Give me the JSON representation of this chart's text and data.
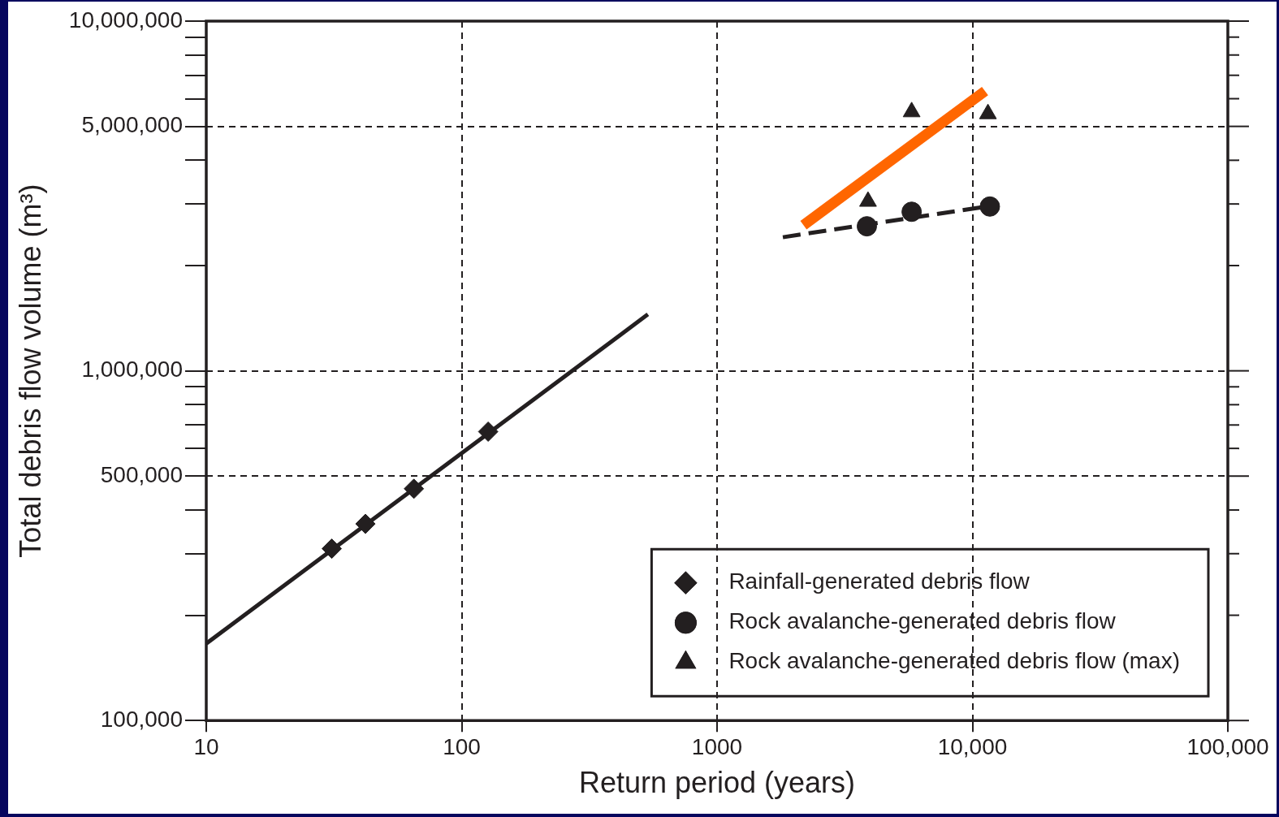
{
  "chart_data": {
    "type": "scatter",
    "xlabel": "Return period (years)",
    "ylabel": "Total debris flow volume (m³)",
    "log": "xy",
    "xlim": [
      10,
      100000
    ],
    "ylim": [
      100000,
      10000000
    ],
    "xticks": [
      10,
      100,
      1000,
      {
        "value": 10000,
        "label": "10,000"
      },
      {
        "value": 100000,
        "label": "100,000"
      }
    ],
    "yticks": [
      {
        "value": 100000,
        "label": "100,000"
      },
      {
        "value": 200000,
        "label": null
      },
      {
        "value": 300000,
        "label": null
      },
      {
        "value": 400000,
        "label": null
      },
      {
        "value": 500000,
        "label": "500,000"
      },
      {
        "value": 600000,
        "label": null
      },
      {
        "value": 700000,
        "label": null
      },
      {
        "value": 800000,
        "label": null
      },
      {
        "value": 900000,
        "label": null
      },
      {
        "value": 1000000,
        "label": "1,000,000"
      },
      {
        "value": 2000000,
        "label": null
      },
      {
        "value": 3000000,
        "label": null
      },
      {
        "value": 4000000,
        "label": null
      },
      {
        "value": 5000000,
        "label": "5,000,000"
      },
      {
        "value": 6000000,
        "label": null
      },
      {
        "value": 7000000,
        "label": null
      },
      {
        "value": 8000000,
        "label": null
      },
      {
        "value": 9000000,
        "label": null
      },
      {
        "value": 10000000,
        "label": "10,000,000"
      }
    ],
    "grid": true,
    "legend": "bottom right",
    "series": [
      {
        "name": "Rainfall-generated debris flow",
        "type": "scatter",
        "marker": "diamond",
        "color": "#231f20",
        "x": [
          31,
          42,
          65,
          127
        ],
        "values": [
          310000,
          365000,
          460000,
          670000
        ]
      },
      {
        "type": "line",
        "marker": "none",
        "line_style": "solid",
        "color": "#231f20",
        "x": [
          10,
          536
        ],
        "values": [
          166000,
          1450000
        ]
      },
      {
        "name": "Rock avalanche-generated debris flow",
        "type": "scatter",
        "marker": "circle",
        "color": "#231f20",
        "x": [
          3860,
          5780,
          11700
        ],
        "values": [
          2590000,
          2850000,
          2950000
        ]
      },
      {
        "type": "line",
        "marker": "none",
        "line_style": "dashed",
        "color": "#231f20",
        "x": [
          1810,
          11700
        ],
        "values": [
          2410000,
          2960000
        ]
      },
      {
        "name": "Rock avalanche-generated debris flow (max)",
        "type": "scatter",
        "marker": "triangle",
        "color": "#231f20",
        "x": [
          3900,
          5780,
          11500
        ],
        "values": [
          3050000,
          5500000,
          5430000
        ]
      },
      {
        "type": "line",
        "marker": "none",
        "line_style": "solid",
        "color": "#ff6600",
        "x": [
          2180,
          11200
        ],
        "values": [
          2610000,
          6310000
        ]
      }
    ]
  }
}
